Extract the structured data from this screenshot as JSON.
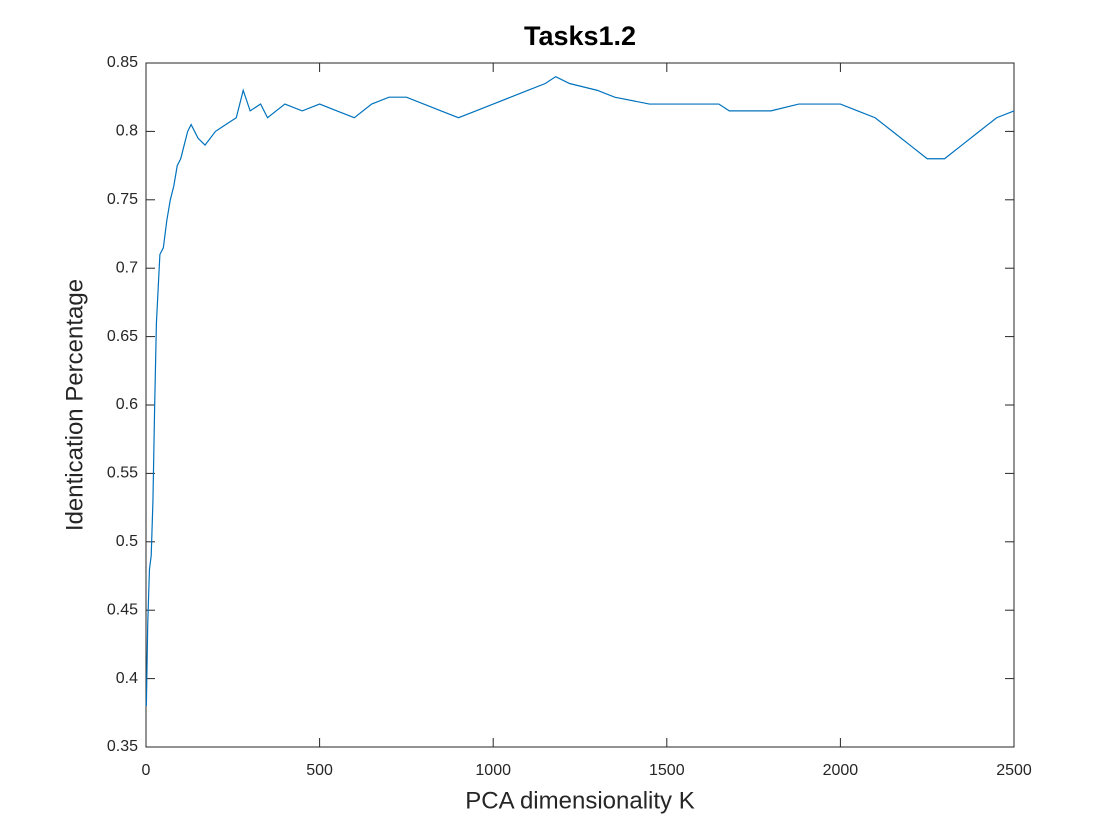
{
  "chart_data": {
    "type": "line",
    "title": "Tasks1.2",
    "x_label": "PCA dimensionality K",
    "y_label": "Identication Percentage",
    "x": [
      1,
      5,
      10,
      15,
      20,
      25,
      30,
      40,
      50,
      60,
      70,
      80,
      90,
      100,
      110,
      120,
      130,
      150,
      170,
      200,
      230,
      260,
      280,
      300,
      330,
      350,
      400,
      450,
      500,
      550,
      600,
      650,
      700,
      750,
      800,
      850,
      900,
      950,
      1000,
      1050,
      1100,
      1150,
      1180,
      1220,
      1300,
      1350,
      1450,
      1500,
      1550,
      1600,
      1650,
      1680,
      1800,
      1880,
      2000,
      2050,
      2100,
      2150,
      2200,
      2250,
      2300,
      2350,
      2400,
      2450,
      2500
    ],
    "series": [
      {
        "name": "Identication Percentage",
        "color": "#0072bd",
        "values": [
          0.38,
          0.44,
          0.48,
          0.49,
          0.53,
          0.6,
          0.66,
          0.71,
          0.715,
          0.735,
          0.75,
          0.76,
          0.775,
          0.78,
          0.79,
          0.8,
          0.805,
          0.795,
          0.79,
          0.8,
          0.805,
          0.81,
          0.83,
          0.815,
          0.82,
          0.81,
          0.82,
          0.815,
          0.82,
          0.815,
          0.81,
          0.82,
          0.825,
          0.825,
          0.82,
          0.815,
          0.81,
          0.815,
          0.82,
          0.825,
          0.83,
          0.835,
          0.84,
          0.835,
          0.83,
          0.825,
          0.82,
          0.82,
          0.82,
          0.82,
          0.82,
          0.815,
          0.815,
          0.82,
          0.82,
          0.815,
          0.81,
          0.8,
          0.79,
          0.78,
          0.78,
          0.79,
          0.8,
          0.81,
          0.815
        ]
      }
    ],
    "xlim": [
      0,
      2500
    ],
    "xticks": [
      0,
      500,
      1000,
      1500,
      2000,
      2500
    ],
    "ylim": [
      0.35,
      0.85
    ],
    "yticks": [
      0.35,
      0.4,
      0.45,
      0.5,
      0.55,
      0.6,
      0.65,
      0.7,
      0.75,
      0.8,
      0.85
    ],
    "grid": false
  }
}
